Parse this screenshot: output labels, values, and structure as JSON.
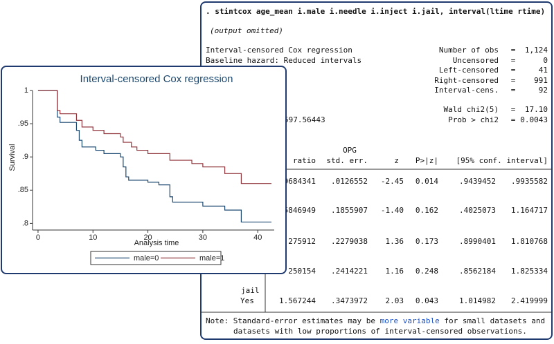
{
  "output": {
    "command": ". stintcox age_mean i.male i.needle i.inject i.jail, interval(ltime rtime)",
    "omitted": "(output omitted)",
    "model": "Interval-censored Cox regression",
    "hazard": "Baseline hazard: Reduced intervals",
    "stats": [
      [
        "Number of obs",
        "=",
        "1,124"
      ],
      [
        "Uncensored",
        "=",
        "0"
      ],
      [
        "Left-censored",
        "=",
        "41"
      ],
      [
        "Right-censored",
        "=",
        "991"
      ],
      [
        "Interval-cens.",
        "=",
        "92"
      ],
      [
        "Wald chi2(5)",
        "=",
        "17.10"
      ],
      [
        "Prob > chi2",
        "=",
        "0.0043"
      ]
    ],
    "loglik": "597.56443",
    "header_top": "OPG",
    "header": [
      "ratio",
      "std. err.",
      "z",
      "P>|z|",
      "[95% conf. interval]"
    ],
    "rows": [
      [
        "9684341",
        ".0126552",
        "-2.45",
        "0.014",
        ".9439452",
        ".9935582"
      ],
      [
        "5846949",
        ".1855907",
        "-1.40",
        "0.162",
        ".4025073",
        "1.164717"
      ],
      [
        "275912",
        ".2279038",
        "1.36",
        "0.173",
        ".8990401",
        "1.810768"
      ],
      [
        "250154",
        ".2414221",
        "1.16",
        "0.248",
        ".8562184",
        "1.825334"
      ],
      [
        "1.567244",
        ".3473972",
        "2.03",
        "0.043",
        "1.014982",
        "2.419999"
      ]
    ],
    "row_group": "jail",
    "row_level": "Yes",
    "note": [
      "Note: Standard-error estimates may be ",
      "more variable",
      " for small datasets and"
    ],
    "note_line2": "datasets with low proportions of interval-censored observations."
  },
  "chart_data": {
    "type": "line",
    "step": true,
    "title": "Interval-censored Cox regression",
    "xlabel": "Analysis time",
    "ylabel": "Survival",
    "xlim": [
      -1,
      43
    ],
    "ylim": [
      0.79,
      1
    ],
    "xticks": [
      0,
      10,
      20,
      30,
      40
    ],
    "yticks": [
      {
        "value": 0.8,
        "label": ".8"
      },
      {
        "value": 0.85,
        "label": ".85"
      },
      {
        "value": 0.9,
        "label": ".9"
      },
      {
        "value": 0.95,
        "label": ".95"
      },
      1
    ],
    "series": [
      {
        "name": "male=0",
        "color": "#1a476f",
        "x": [
          0,
          3.5,
          4,
          7,
          7.5,
          8,
          10.5,
          12,
          15,
          15.5,
          16,
          16.5,
          20,
          22,
          24,
          24.5,
          30,
          34,
          37,
          42.5
        ],
        "values": [
          1,
          0.96,
          0.952,
          0.94,
          0.925,
          0.915,
          0.91,
          0.905,
          0.9,
          0.885,
          0.87,
          0.865,
          0.862,
          0.858,
          0.84,
          0.832,
          0.826,
          0.82,
          0.802,
          0.802
        ]
      },
      {
        "name": "male=1",
        "color": "#90353b",
        "x": [
          0,
          3.5,
          4,
          7,
          8,
          10,
          12,
          15,
          15.5,
          17,
          18,
          20,
          24,
          28,
          30,
          34,
          37,
          42.5
        ],
        "values": [
          1,
          0.97,
          0.965,
          0.955,
          0.945,
          0.94,
          0.935,
          0.93,
          0.922,
          0.915,
          0.91,
          0.905,
          0.895,
          0.89,
          0.885,
          0.875,
          0.86,
          0.86
        ]
      }
    ]
  }
}
